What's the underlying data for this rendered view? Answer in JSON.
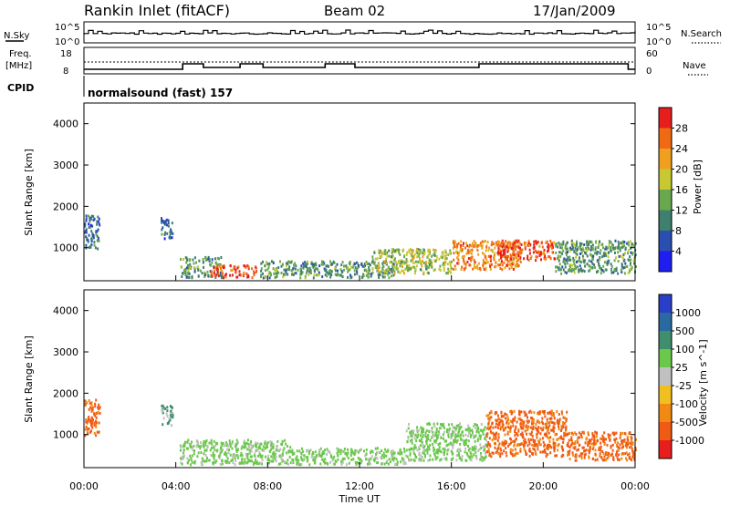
{
  "header": {
    "site": "Rankin Inlet (fitACF)",
    "beam": "Beam 02",
    "date": "17/Jan/2009"
  },
  "status_rows": {
    "nsky_label": "N.Sky",
    "nsearch_label": "N.Search",
    "left_top": "10^5",
    "left_bottom": "10^0",
    "right_top": "10^5",
    "right_bottom": "10^0",
    "freq_label_1": "Freq.",
    "freq_label_2": "[MHz]",
    "freq_ticks": [
      "18",
      "8"
    ],
    "nave_label": "Nave",
    "nave_ticks": [
      "60",
      "0"
    ],
    "cpid_label": "CPID",
    "cpid_text": "normalsound (fast) 157"
  },
  "chart_data": [
    {
      "type": "heatmap",
      "parameter": "Power",
      "ylabel": "Slant Range [km]",
      "xlabel": "Time UT",
      "y_ticks": [
        "1000",
        "2000",
        "3000",
        "4000"
      ],
      "x_ticks": [
        "00:00",
        "04:00",
        "08:00",
        "12:00",
        "16:00",
        "20:00",
        "00:00"
      ],
      "colorbar": {
        "label": "Power [dB]",
        "ticks": [
          "4",
          "8",
          "12",
          "16",
          "20",
          "24",
          "28"
        ],
        "colors": [
          "#1e1ef0",
          "#2a4fb0",
          "#3f7f6e",
          "#6aa84f",
          "#c8c832",
          "#f0a020",
          "#f06a14",
          "#e81e1e"
        ]
      },
      "echo_regions": [
        {
          "t_start": "00:00",
          "t_end": "00:40",
          "range_km": [
            1000,
            1800
          ],
          "value_db": 8
        },
        {
          "t_start": "03:20",
          "t_end": "03:50",
          "range_km": [
            1250,
            1750
          ],
          "value_db": 8
        },
        {
          "t_start": "04:10",
          "t_end": "06:00",
          "range_km": [
            300,
            800
          ],
          "value_db": 12
        },
        {
          "t_start": "05:30",
          "t_end": "07:30",
          "range_km": [
            300,
            600
          ],
          "value_db": 28
        },
        {
          "t_start": "07:40",
          "t_end": "13:30",
          "range_km": [
            300,
            700
          ],
          "value_db": 12
        },
        {
          "t_start": "12:30",
          "t_end": "16:00",
          "range_km": [
            400,
            1000
          ],
          "value_db": 16
        },
        {
          "t_start": "16:00",
          "t_end": "19:00",
          "range_km": [
            500,
            1200
          ],
          "value_db": 24
        },
        {
          "t_start": "18:00",
          "t_end": "20:30",
          "range_km": [
            700,
            1200
          ],
          "value_db": 28
        },
        {
          "t_start": "20:30",
          "t_end": "24:00",
          "range_km": [
            400,
            1200
          ],
          "value_db": 12
        }
      ]
    },
    {
      "type": "heatmap",
      "parameter": "Velocity",
      "ylabel": "Slant Range [km]",
      "xlabel": "Time UT",
      "y_ticks": [
        "1000",
        "2000",
        "3000",
        "4000"
      ],
      "x_ticks": [
        "00:00",
        "04:00",
        "08:00",
        "12:00",
        "16:00",
        "20:00",
        "00:00"
      ],
      "colorbar": {
        "label": "Velocity [m s^-1]",
        "ticks": [
          "1000",
          "500",
          "100",
          "25",
          "-25",
          "-100",
          "-500",
          "-1000"
        ],
        "colors": [
          "#2a3fc8",
          "#2a6aa0",
          "#3f8f6e",
          "#6ac84a",
          "#c0c0c0",
          "#f0c020",
          "#f08a14",
          "#f05a14",
          "#e81e1e"
        ]
      },
      "echo_regions": [
        {
          "t_start": "00:00",
          "t_end": "00:40",
          "range_km": [
            1000,
            1900
          ],
          "value_ms": -500
        },
        {
          "t_start": "03:20",
          "t_end": "03:50",
          "range_km": [
            1250,
            1750
          ],
          "value_ms": 500
        },
        {
          "t_start": "04:10",
          "t_end": "09:00",
          "range_km": [
            300,
            900
          ],
          "value_ms": 100
        },
        {
          "t_start": "09:00",
          "t_end": "14:00",
          "range_km": [
            300,
            700
          ],
          "value_ms": 100
        },
        {
          "t_start": "14:00",
          "t_end": "17:30",
          "range_km": [
            400,
            1300
          ],
          "value_ms": 100
        },
        {
          "t_start": "17:30",
          "t_end": "21:00",
          "range_km": [
            500,
            1600
          ],
          "value_ms": -500
        },
        {
          "t_start": "21:00",
          "t_end": "24:00",
          "range_km": [
            400,
            1100
          ],
          "value_ms": -500
        }
      ]
    }
  ]
}
